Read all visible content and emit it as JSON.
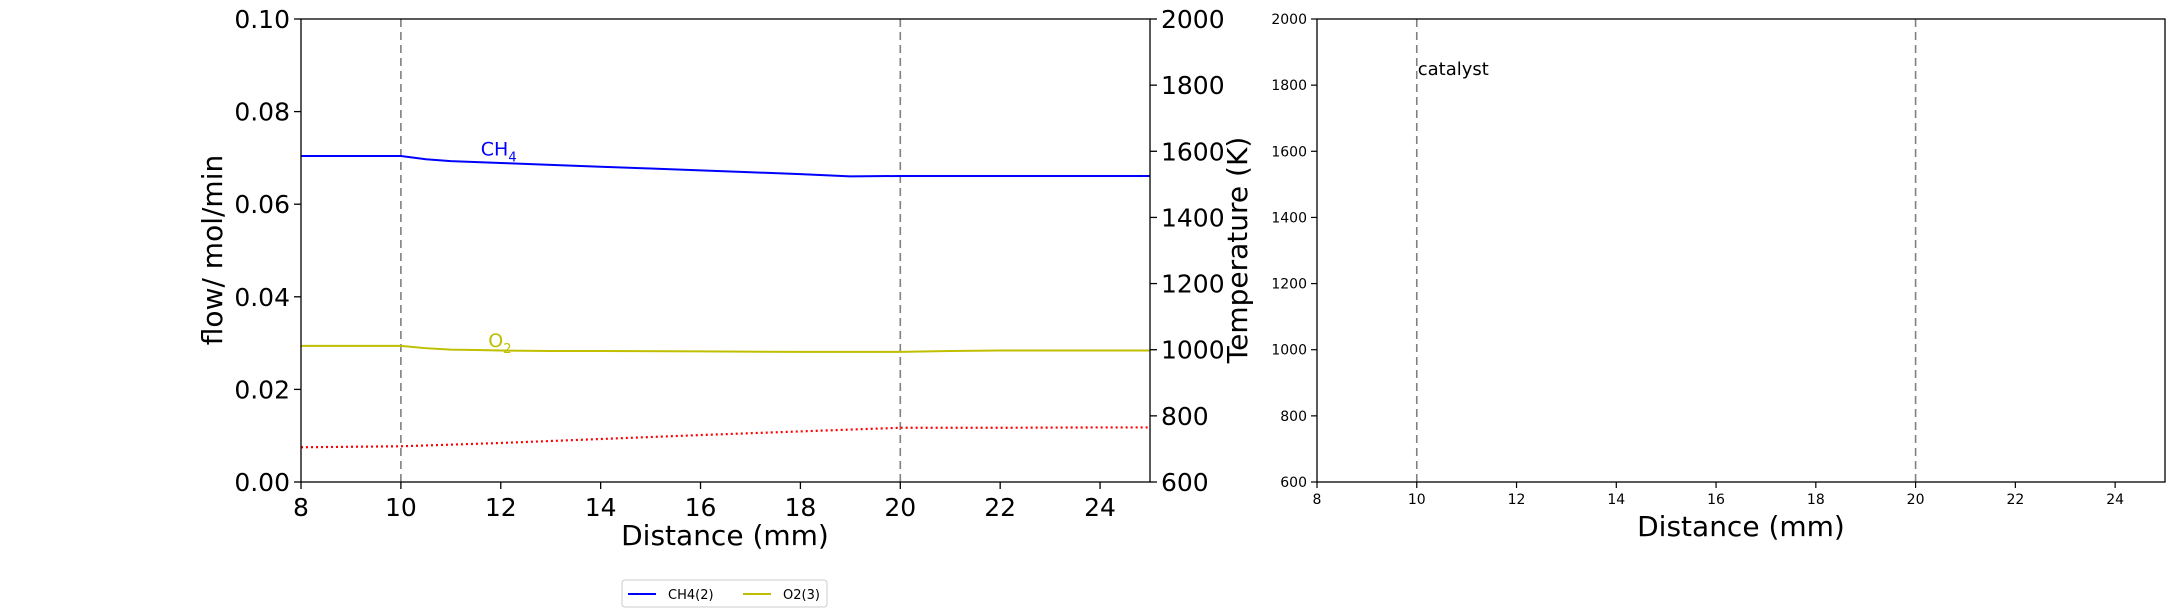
{
  "chart_data": [
    {
      "type": "line",
      "xlabel": "Distance (mm)",
      "ylabel": "flow/ mol/min",
      "y2label": "Temperature (K)",
      "xlim": [
        8,
        25
      ],
      "ylim": [
        0,
        0.1
      ],
      "y2lim": [
        600,
        2000
      ],
      "xticks": [
        "8",
        "10",
        "12",
        "14",
        "16",
        "18",
        "20",
        "22",
        "24"
      ],
      "yticks": [
        "0.00",
        "0.02",
        "0.04",
        "0.06",
        "0.08",
        "0.10"
      ],
      "y2ticks": [
        "600",
        "800",
        "1000",
        "1200",
        "1400",
        "1600",
        "1800",
        "2000"
      ],
      "vlines": [
        10,
        20
      ],
      "series": [
        {
          "name": "CH4(2)",
          "label_base": "CH",
          "label_sub": "4",
          "label_at": [
            11.6,
            0.0705
          ],
          "color": "#0000ff",
          "axis": "left",
          "style": "solid",
          "x": [
            8,
            10,
            10.5,
            11,
            12,
            13,
            14,
            15,
            16,
            17,
            18,
            19,
            20,
            21,
            22,
            23,
            24,
            25
          ],
          "y": [
            0.0704,
            0.0704,
            0.0697,
            0.0693,
            0.0689,
            0.0685,
            0.0681,
            0.0677,
            0.0673,
            0.0669,
            0.0665,
            0.066,
            0.0661,
            0.0661,
            0.0661,
            0.0661,
            0.0661,
            0.0661
          ]
        },
        {
          "name": "O2(3)",
          "label_base": "O",
          "label_sub": "2",
          "label_at": [
            11.75,
            0.0292
          ],
          "color": "#bfbf00",
          "axis": "left",
          "style": "solid",
          "x": [
            8,
            10,
            10.5,
            11,
            11.5,
            12,
            13,
            14,
            16,
            18,
            20,
            21,
            22,
            25
          ],
          "y": [
            0.0294,
            0.0294,
            0.0289,
            0.0286,
            0.0285,
            0.0284,
            0.0283,
            0.0283,
            0.0282,
            0.0281,
            0.0281,
            0.0283,
            0.0284,
            0.0284
          ]
        },
        {
          "name": "Temperature",
          "color": "#ff0000",
          "axis": "right",
          "style": "dotted",
          "x": [
            8,
            10,
            12,
            14,
            16,
            18,
            20,
            22,
            24,
            25
          ],
          "y": [
            705,
            708,
            718,
            730,
            742,
            753,
            764,
            764,
            765,
            765
          ]
        }
      ],
      "legend": {
        "placement": "bottom-center",
        "entries": [
          {
            "label": "CH4(2)",
            "color": "#0000ff"
          },
          {
            "label": "O2(3)",
            "color": "#bfbf00"
          }
        ]
      }
    },
    {
      "type": "line",
      "xlabel": "Distance (mm)",
      "ylabel": "",
      "xlim": [
        8,
        25
      ],
      "ylim": [
        600,
        2000
      ],
      "xticks": [
        "8",
        "10",
        "12",
        "14",
        "16",
        "18",
        "20",
        "22",
        "24"
      ],
      "yticks": [
        "600",
        "800",
        "1000",
        "1200",
        "1400",
        "1600",
        "1800",
        "2000"
      ],
      "vlines": [
        10,
        20
      ],
      "annotation": {
        "text": "catalyst",
        "x": 10,
        "y": 1830
      },
      "series": []
    }
  ]
}
